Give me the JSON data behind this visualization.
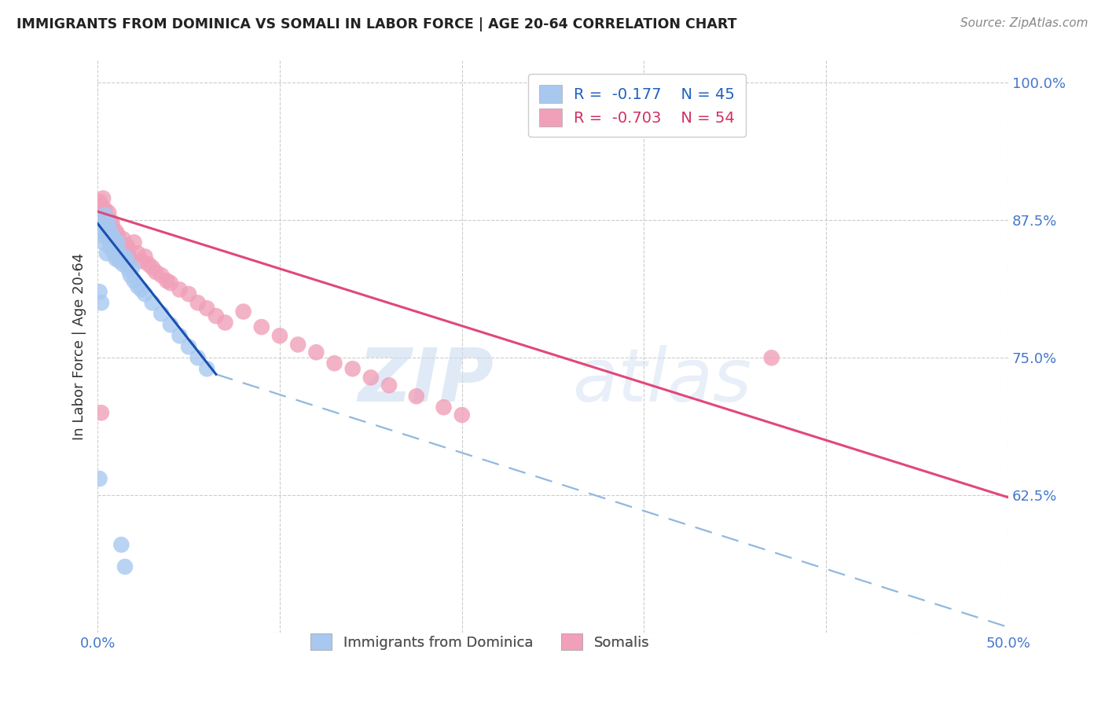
{
  "title": "IMMIGRANTS FROM DOMINICA VS SOMALI IN LABOR FORCE | AGE 20-64 CORRELATION CHART",
  "source_text": "Source: ZipAtlas.com",
  "ylabel": "In Labor Force | Age 20-64",
  "xlim": [
    0.0,
    0.5
  ],
  "ylim": [
    0.5,
    1.02
  ],
  "x_tick_positions": [
    0.0,
    0.1,
    0.2,
    0.3,
    0.4,
    0.5
  ],
  "x_tick_labels": [
    "0.0%",
    "",
    "",
    "",
    "",
    "50.0%"
  ],
  "y_tick_positions": [
    0.5,
    0.625,
    0.75,
    0.875,
    1.0
  ],
  "y_tick_labels": [
    "",
    "62.5%",
    "75.0%",
    "87.5%",
    "100.0%"
  ],
  "legend_r1": "R =  -0.177",
  "legend_n1": "N = 45",
  "legend_r2": "R =  -0.703",
  "legend_n2": "N = 54",
  "dominica_color": "#a8c8f0",
  "somali_color": "#f0a0b8",
  "dominica_line_color": "#1a50b0",
  "somali_line_color": "#e04878",
  "dashed_line_color": "#90b8e0",
  "dominica_x": [
    0.001,
    0.002,
    0.003,
    0.003,
    0.004,
    0.004,
    0.005,
    0.005,
    0.006,
    0.006,
    0.007,
    0.007,
    0.008,
    0.008,
    0.009,
    0.009,
    0.01,
    0.01,
    0.011,
    0.011,
    0.012,
    0.012,
    0.013,
    0.014,
    0.015,
    0.016,
    0.017,
    0.018,
    0.019,
    0.02,
    0.022,
    0.024,
    0.026,
    0.03,
    0.035,
    0.04,
    0.045,
    0.05,
    0.055,
    0.06,
    0.001,
    0.002,
    0.013,
    0.015,
    0.001
  ],
  "dominica_y": [
    0.875,
    0.87,
    0.865,
    0.855,
    0.88,
    0.86,
    0.875,
    0.845,
    0.87,
    0.86,
    0.865,
    0.85,
    0.86,
    0.855,
    0.858,
    0.845,
    0.85,
    0.84,
    0.855,
    0.842,
    0.845,
    0.838,
    0.84,
    0.835,
    0.842,
    0.838,
    0.83,
    0.825,
    0.832,
    0.82,
    0.815,
    0.812,
    0.808,
    0.8,
    0.79,
    0.78,
    0.77,
    0.76,
    0.75,
    0.74,
    0.81,
    0.8,
    0.58,
    0.56,
    0.64
  ],
  "somali_x": [
    0.001,
    0.002,
    0.003,
    0.003,
    0.004,
    0.004,
    0.005,
    0.005,
    0.006,
    0.006,
    0.007,
    0.007,
    0.008,
    0.008,
    0.009,
    0.01,
    0.011,
    0.012,
    0.013,
    0.014,
    0.015,
    0.016,
    0.017,
    0.018,
    0.02,
    0.022,
    0.024,
    0.026,
    0.028,
    0.03,
    0.032,
    0.035,
    0.038,
    0.04,
    0.045,
    0.05,
    0.055,
    0.06,
    0.065,
    0.07,
    0.08,
    0.09,
    0.1,
    0.11,
    0.12,
    0.13,
    0.14,
    0.15,
    0.16,
    0.175,
    0.19,
    0.2,
    0.37,
    0.002
  ],
  "somali_y": [
    0.892,
    0.888,
    0.88,
    0.895,
    0.878,
    0.885,
    0.875,
    0.87,
    0.882,
    0.865,
    0.875,
    0.868,
    0.86,
    0.872,
    0.858,
    0.865,
    0.862,
    0.855,
    0.85,
    0.858,
    0.845,
    0.852,
    0.848,
    0.84,
    0.855,
    0.845,
    0.838,
    0.842,
    0.835,
    0.832,
    0.828,
    0.825,
    0.82,
    0.818,
    0.812,
    0.808,
    0.8,
    0.795,
    0.788,
    0.782,
    0.792,
    0.778,
    0.77,
    0.762,
    0.755,
    0.745,
    0.74,
    0.732,
    0.725,
    0.715,
    0.705,
    0.698,
    0.75,
    0.7
  ],
  "dom_line_x0": 0.0,
  "dom_line_y0": 0.872,
  "dom_line_x1": 0.065,
  "dom_line_y1": 0.735,
  "dash_line_x0": 0.065,
  "dash_line_y0": 0.735,
  "dash_line_x1": 0.5,
  "dash_line_y1": 0.505,
  "som_line_x0": 0.0,
  "som_line_y0": 0.883,
  "som_line_x1": 0.5,
  "som_line_y1": 0.623
}
